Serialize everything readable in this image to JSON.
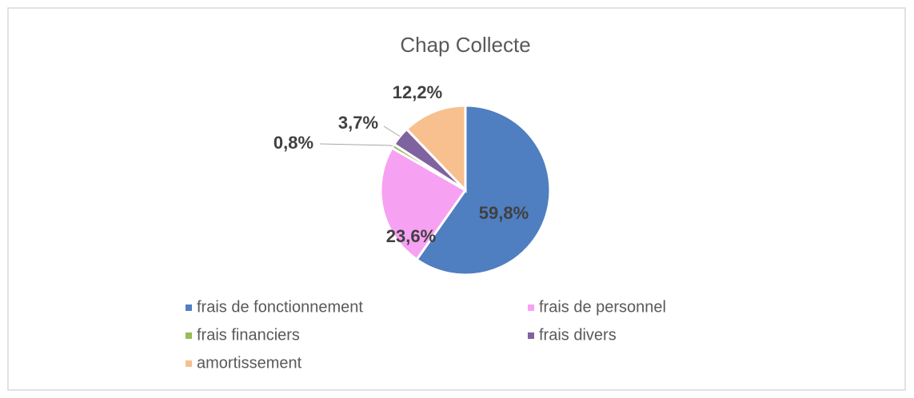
{
  "chart_data": {
    "type": "pie",
    "title": "Chap Collecte",
    "categories": [
      "frais de fonctionnement",
      "frais de personnel",
      "frais financiers",
      "frais divers",
      "amortissement"
    ],
    "values": [
      59.8,
      23.6,
      0.8,
      3.7,
      12.2
    ],
    "value_labels": [
      "59,8%",
      "23,6%",
      "0,8%",
      "3,7%",
      "12,2%"
    ],
    "colors": [
      "#4f7fc0",
      "#f7a1f3",
      "#9bbb59",
      "#7f62a0",
      "#f7c08e"
    ],
    "legend": "bottom"
  }
}
